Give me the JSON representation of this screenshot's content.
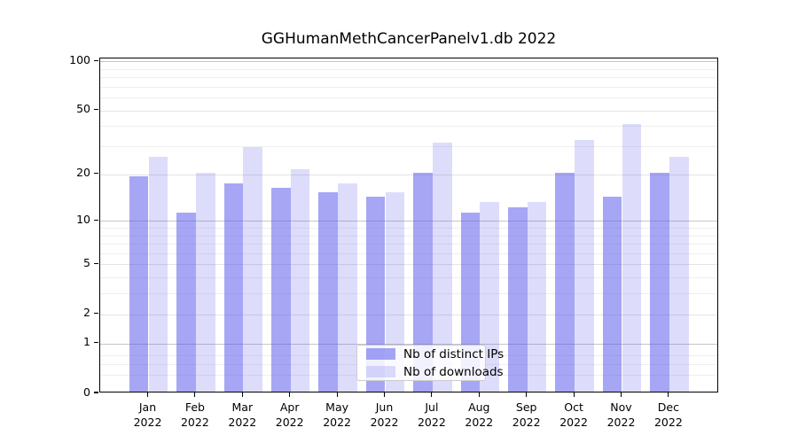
{
  "chart_data": {
    "type": "bar",
    "title": "GGHumanMethCancerPanelv1.db 2022",
    "categories": [
      "Jan",
      "Feb",
      "Mar",
      "Apr",
      "May",
      "Jun",
      "Jul",
      "Aug",
      "Sep",
      "Oct",
      "Nov",
      "Dec"
    ],
    "year": "2022",
    "series": [
      {
        "name": "Nb of distinct IPs",
        "values": [
          19,
          11,
          17,
          16,
          15,
          14,
          20,
          11,
          12,
          20,
          14,
          20
        ]
      },
      {
        "name": "Nb of downloads",
        "values": [
          25,
          20,
          29,
          21,
          17,
          15,
          31,
          13,
          13,
          32,
          40,
          25
        ]
      }
    ],
    "yscale": "log1p",
    "ylim": [
      0,
      100
    ],
    "yticks": [
      0,
      1,
      2,
      5,
      10,
      20,
      50,
      100
    ],
    "decade_gridlines": [
      1,
      10,
      100
    ],
    "minor_gridlines": [
      0.3,
      0.5,
      0.7,
      3,
      4,
      6,
      7,
      8,
      9,
      30,
      40,
      60,
      70,
      80,
      90
    ],
    "grid": true,
    "legend_position": "lower center"
  },
  "colors": {
    "ips_bar": "rgba(85,85,235,0.52)",
    "downloads_bar": "rgba(85,85,235,0.20)",
    "axis": "#000000",
    "gridline_minor": "#efefef",
    "gridline_major": "#c6c6c6"
  }
}
